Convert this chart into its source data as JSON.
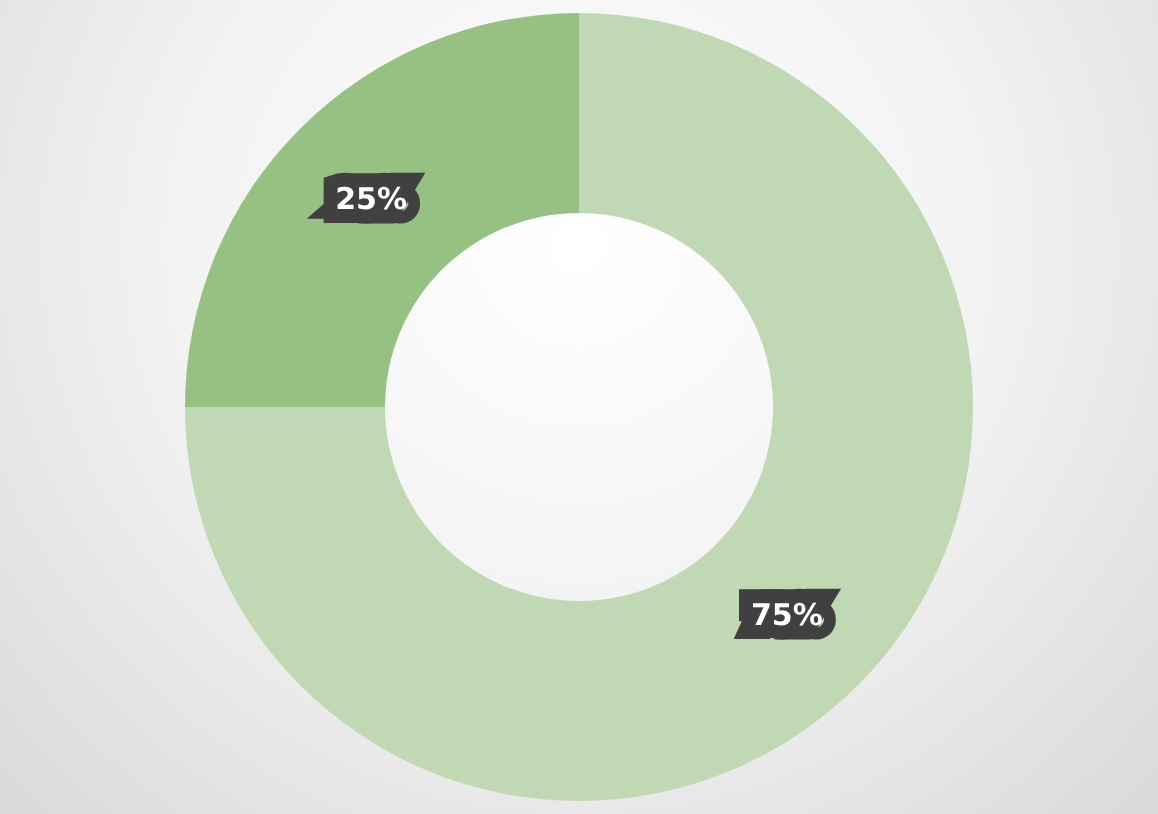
{
  "chart_data": {
    "type": "donut",
    "categories": [
      null,
      null
    ],
    "values": [
      75,
      25
    ],
    "colors": [
      "#c0d9b4",
      "#97c083"
    ],
    "value_labels": [
      "75%",
      "25%"
    ]
  }
}
